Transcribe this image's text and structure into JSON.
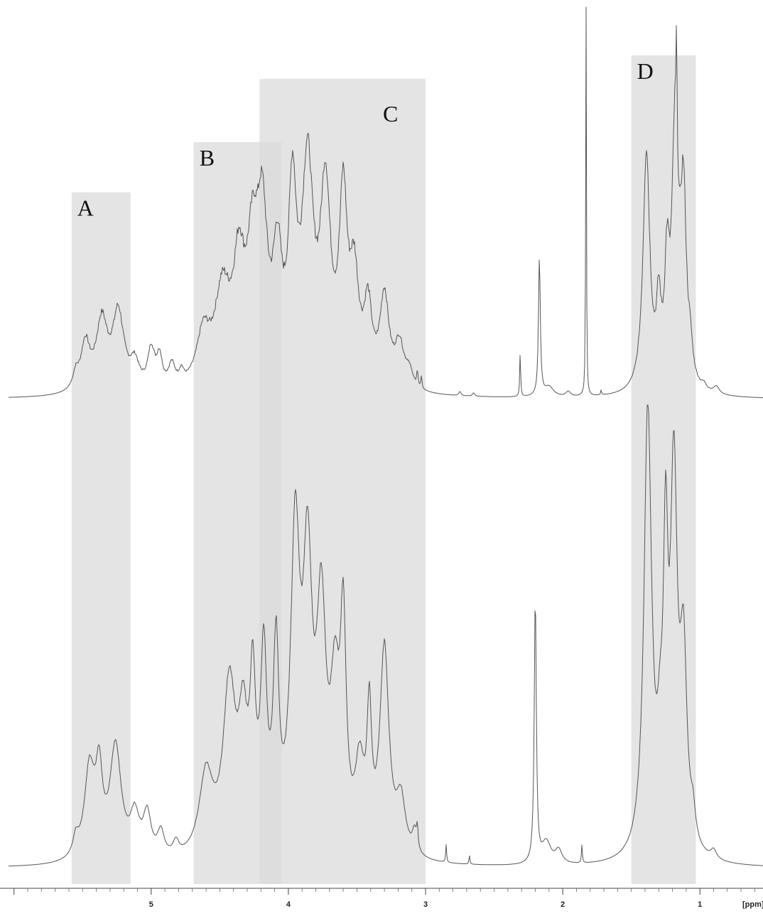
{
  "chart_data": {
    "type": "line",
    "title": "",
    "xlabel": "[ppm]",
    "ylabel": "",
    "x_axis": {
      "min": 0.54,
      "max": 6.04,
      "reversed": true,
      "ticks": [
        5,
        4,
        3,
        2,
        1
      ],
      "minor_step": 0.1
    },
    "grid": false,
    "legend": "none",
    "regions": [
      {
        "label": "A",
        "from_ppm": 5.58,
        "to_ppm": 5.15,
        "top": 0.62
      },
      {
        "label": "B",
        "from_ppm": 4.69,
        "to_ppm": 4.05,
        "top": 0.77
      },
      {
        "label": "C",
        "from_ppm": 4.21,
        "to_ppm": 3.0,
        "top": 0.96
      },
      {
        "label": "D",
        "from_ppm": 1.5,
        "to_ppm": 1.03,
        "top": 1.03
      }
    ],
    "series": [
      {
        "peaks": [
          [
            5.55,
            0.045,
            0.025
          ],
          [
            5.48,
            0.14,
            0.04
          ],
          [
            5.36,
            0.205,
            0.05
          ],
          [
            5.24,
            0.23,
            0.05
          ],
          [
            5.12,
            0.075,
            0.04
          ],
          [
            5.0,
            0.115,
            0.03
          ],
          [
            4.94,
            0.09,
            0.025
          ],
          [
            4.85,
            0.065,
            0.03
          ],
          [
            4.78,
            0.035,
            0.02
          ],
          [
            4.62,
            0.15,
            0.06
          ],
          [
            4.48,
            0.27,
            0.07
          ],
          [
            4.36,
            0.32,
            0.05
          ],
          [
            4.26,
            0.35,
            0.05
          ],
          [
            4.19,
            0.44,
            0.045
          ],
          [
            4.08,
            0.34,
            0.04
          ],
          [
            3.97,
            0.53,
            0.035
          ],
          [
            3.86,
            0.63,
            0.05
          ],
          [
            3.73,
            0.56,
            0.045
          ],
          [
            3.6,
            0.53,
            0.035
          ],
          [
            3.52,
            0.3,
            0.04
          ],
          [
            3.42,
            0.22,
            0.035
          ],
          [
            3.3,
            0.27,
            0.04
          ],
          [
            3.19,
            0.13,
            0.04
          ],
          [
            3.12,
            0.05,
            0.03
          ],
          [
            3.06,
            0.045,
            0.006
          ],
          [
            3.03,
            0.035,
            0.005
          ],
          [
            2.75,
            0.012,
            0.01
          ],
          [
            2.65,
            0.01,
            0.01
          ],
          [
            2.31,
            0.13,
            0.004
          ],
          [
            2.17,
            0.42,
            0.008
          ],
          [
            2.1,
            0.03,
            0.04
          ],
          [
            1.96,
            0.015,
            0.02
          ],
          [
            1.83,
            1.2,
            0.003
          ],
          [
            1.72,
            0.015,
            0.004
          ],
          [
            1.39,
            0.72,
            0.03
          ],
          [
            1.3,
            0.22,
            0.02
          ],
          [
            1.24,
            0.32,
            0.02
          ],
          [
            1.18,
            0.78,
            0.028
          ],
          [
            1.17,
            0.33,
            0.003
          ],
          [
            1.12,
            0.55,
            0.025
          ],
          [
            1.07,
            0.08,
            0.02
          ],
          [
            0.97,
            0.015,
            0.02
          ],
          [
            0.88,
            0.022,
            0.025
          ]
        ],
        "noise": 0.035
      },
      {
        "peaks": [
          [
            5.55,
            0.04,
            0.025
          ],
          [
            5.45,
            0.2,
            0.045
          ],
          [
            5.38,
            0.17,
            0.03
          ],
          [
            5.26,
            0.25,
            0.05
          ],
          [
            5.12,
            0.09,
            0.04
          ],
          [
            5.03,
            0.095,
            0.035
          ],
          [
            4.93,
            0.055,
            0.03
          ],
          [
            4.82,
            0.03,
            0.025
          ],
          [
            4.6,
            0.18,
            0.06
          ],
          [
            4.43,
            0.37,
            0.055
          ],
          [
            4.33,
            0.25,
            0.04
          ],
          [
            4.26,
            0.33,
            0.025
          ],
          [
            4.18,
            0.41,
            0.028
          ],
          [
            4.09,
            0.42,
            0.025
          ],
          [
            3.95,
            0.68,
            0.04
          ],
          [
            3.86,
            0.59,
            0.04
          ],
          [
            3.76,
            0.5,
            0.04
          ],
          [
            3.66,
            0.32,
            0.04
          ],
          [
            3.6,
            0.46,
            0.025
          ],
          [
            3.48,
            0.18,
            0.04
          ],
          [
            3.41,
            0.28,
            0.02
          ],
          [
            3.3,
            0.46,
            0.04
          ],
          [
            3.18,
            0.12,
            0.04
          ],
          [
            3.08,
            0.05,
            0.02
          ],
          [
            3.06,
            0.045,
            0.006
          ],
          [
            2.85,
            0.04,
            0.004
          ],
          [
            2.68,
            0.02,
            0.004
          ],
          [
            2.2,
            0.6,
            0.009
          ],
          [
            2.12,
            0.05,
            0.04
          ],
          [
            2.03,
            0.03,
            0.03
          ],
          [
            1.86,
            0.04,
            0.004
          ],
          [
            1.38,
            1.0,
            0.033
          ],
          [
            1.29,
            0.15,
            0.025
          ],
          [
            1.25,
            0.6,
            0.02
          ],
          [
            1.19,
            0.82,
            0.03
          ],
          [
            1.12,
            0.42,
            0.03
          ],
          [
            1.05,
            0.06,
            0.02
          ],
          [
            0.9,
            0.02,
            0.025
          ]
        ],
        "noise": 0.01
      }
    ]
  }
}
